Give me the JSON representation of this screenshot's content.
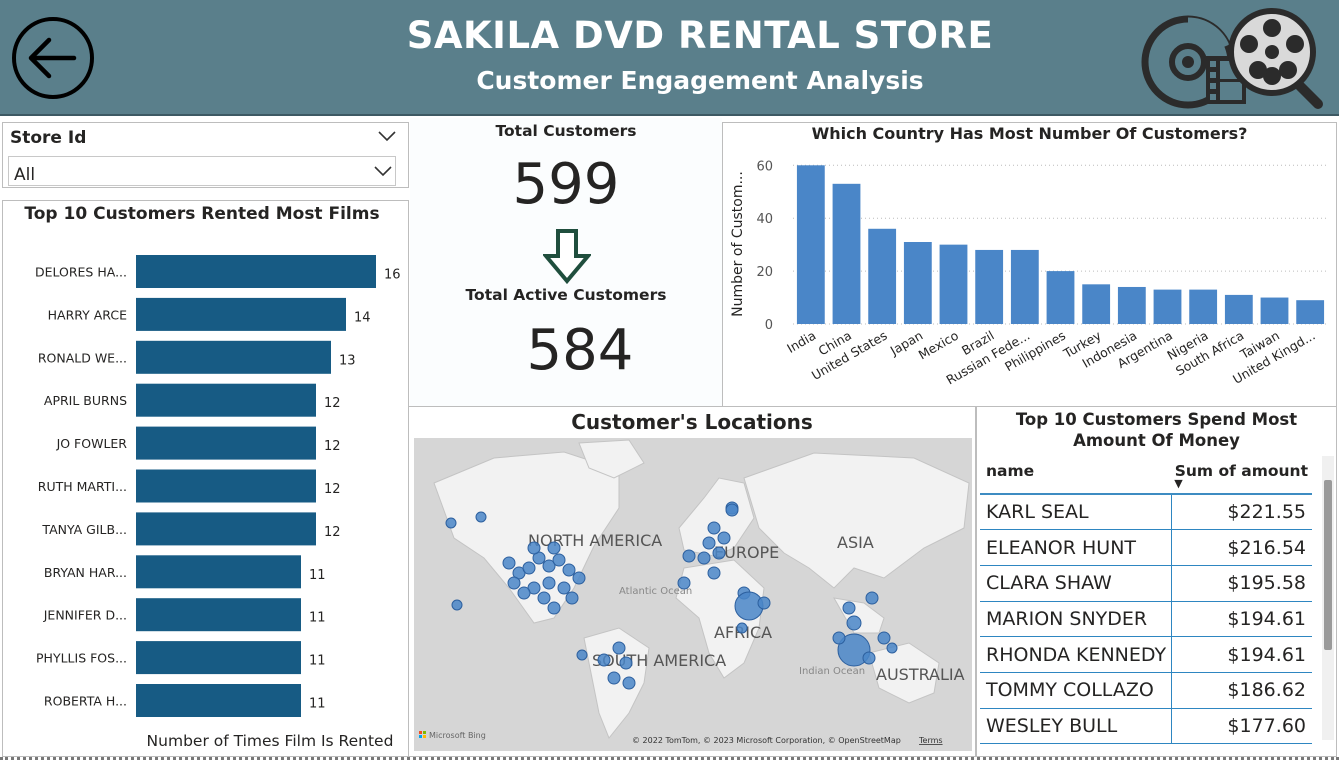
{
  "header": {
    "title": "SAKILA DVD RENTAL STORE",
    "subtitle": "Customer Engagement Analysis",
    "back_icon": "arrow-left-icon",
    "logo_icon": "film-reel-icon"
  },
  "filter": {
    "label": "Store Id",
    "value": "All"
  },
  "kpis": {
    "total_customers_label": "Total Customers",
    "total_customers_value": "599",
    "active_customers_label": "Total Active Customers",
    "active_customers_value": "584"
  },
  "map": {
    "title": "Customer's Locations",
    "labels": [
      "NORTH AMERICA",
      "EUROPE",
      "ASIA",
      "AFRICA",
      "SOUTH AMERICA",
      "AUSTRALIA"
    ],
    "ocean_labels": [
      "Atlantic Ocean",
      "Indian Ocean"
    ],
    "brand": "Microsoft Bing",
    "attribution": "© 2022 TomTom, © 2023 Microsoft Corporation, © OpenStreetMap",
    "terms": "Terms"
  },
  "spend_table": {
    "title": "Top 10 Customers Spend Most Amount Of Money",
    "columns": [
      "name",
      "Sum of amount"
    ],
    "rows": [
      [
        "KARL SEAL",
        "$221.55"
      ],
      [
        "ELEANOR HUNT",
        "$216.54"
      ],
      [
        "CLARA SHAW",
        "$195.58"
      ],
      [
        "MARION SNYDER",
        "$194.61"
      ],
      [
        "RHONDA KENNEDY",
        "$194.61"
      ],
      [
        "TOMMY COLLAZO",
        "$186.62"
      ],
      [
        "WESLEY BULL",
        "$177.60"
      ]
    ]
  },
  "chart_data": [
    {
      "type": "bar",
      "orientation": "horizontal",
      "title": "Top 10 Customers Rented Most Films",
      "xlabel": "Number of Times Film Is Rented",
      "categories": [
        "DELORES HA...",
        "HARRY ARCE",
        "RONALD WE...",
        "APRIL BURNS",
        "JO FOWLER",
        "RUTH MARTI...",
        "TANYA GILB...",
        "BRYAN HAR...",
        "JENNIFER D...",
        "PHYLLIS FOS...",
        "ROBERTA H..."
      ],
      "values": [
        16,
        14,
        13,
        12,
        12,
        12,
        12,
        11,
        11,
        11,
        11
      ],
      "color": "#175b84",
      "xlim": [
        0,
        16
      ]
    },
    {
      "type": "bar",
      "title": "Which Country Has Most Number Of Customers?",
      "ylabel": "Number of Custom...",
      "categories": [
        "India",
        "China",
        "United States",
        "Japan",
        "Mexico",
        "Brazil",
        "Russian Fede...",
        "Philippines",
        "Turkey",
        "Indonesia",
        "Argentina",
        "Nigeria",
        "South Africa",
        "Taiwan",
        "United Kingd..."
      ],
      "values": [
        60,
        53,
        36,
        31,
        30,
        28,
        28,
        20,
        15,
        14,
        13,
        13,
        11,
        10,
        9
      ],
      "yticks": [
        "0",
        "20",
        "40",
        "60"
      ],
      "ylim": [
        0,
        62
      ],
      "grid": true,
      "color": "#4a86c8"
    }
  ]
}
